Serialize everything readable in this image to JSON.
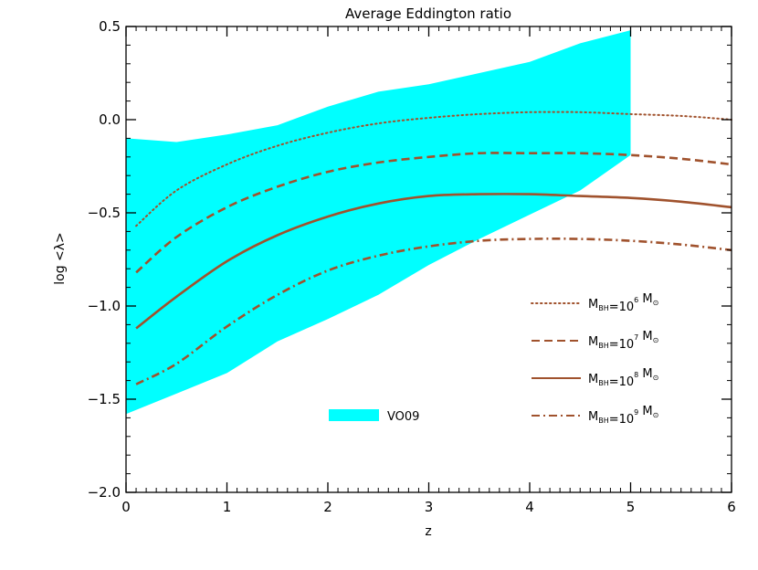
{
  "chart_data": {
    "type": "line",
    "title": "Average Eddington ratio",
    "xlabel": "z",
    "ylabel": "log <λ>",
    "xlim": [
      0,
      6
    ],
    "ylim": [
      -2.0,
      0.5
    ],
    "xticks": [
      0,
      1,
      2,
      3,
      4,
      5,
      6
    ],
    "xtick_labels": [
      "0",
      "1",
      "2",
      "3",
      "4",
      "5",
      "6"
    ],
    "yticks": [
      -2.0,
      -1.5,
      -1.0,
      -0.5,
      0.0,
      0.5
    ],
    "ytick_labels": [
      "−2.0",
      "−1.5",
      "−1.0",
      "−0.5",
      "0.0",
      "0.5"
    ],
    "band": {
      "name": "VO09",
      "color": "#00ffff",
      "upper": [
        [
          0,
          -0.1
        ],
        [
          0.5,
          -0.12
        ],
        [
          1,
          -0.08
        ],
        [
          1.5,
          -0.03
        ],
        [
          2,
          0.07
        ],
        [
          2.5,
          0.15
        ],
        [
          3,
          0.19
        ],
        [
          3.5,
          0.25
        ],
        [
          4,
          0.31
        ],
        [
          4.5,
          0.41
        ],
        [
          5,
          0.48
        ]
      ],
      "lower": [
        [
          0,
          -1.58
        ],
        [
          0.5,
          -1.47
        ],
        [
          1,
          -1.36
        ],
        [
          1.5,
          -1.19
        ],
        [
          2,
          -1.07
        ],
        [
          2.5,
          -0.94
        ],
        [
          3,
          -0.78
        ],
        [
          3.5,
          -0.64
        ],
        [
          4,
          -0.51
        ],
        [
          4.5,
          -0.38
        ],
        [
          5,
          -0.19
        ]
      ]
    },
    "series": [
      {
        "label_base": "M",
        "label_sub": "BH",
        "label_mid": "=10",
        "label_sup": "6",
        "label_unit": "M",
        "label_unit_sub": "⊙",
        "style": "dotted",
        "color": "#a0522d",
        "x": [
          0.1,
          0.5,
          1,
          1.5,
          2,
          2.5,
          3,
          3.5,
          4,
          4.5,
          5,
          5.5,
          6
        ],
        "y": [
          -0.57,
          -0.38,
          -0.24,
          -0.14,
          -0.07,
          -0.02,
          0.01,
          0.03,
          0.04,
          0.04,
          0.03,
          0.02,
          0.0
        ]
      },
      {
        "label_base": "M",
        "label_sub": "BH",
        "label_mid": "=10",
        "label_sup": "7",
        "label_unit": "M",
        "label_unit_sub": "⊙",
        "style": "dashed",
        "color": "#a0522d",
        "x": [
          0.1,
          0.5,
          1,
          1.5,
          2,
          2.5,
          3,
          3.5,
          4,
          4.5,
          5,
          5.5,
          6
        ],
        "y": [
          -0.82,
          -0.63,
          -0.47,
          -0.36,
          -0.28,
          -0.23,
          -0.2,
          -0.18,
          -0.18,
          -0.18,
          -0.19,
          -0.21,
          -0.24
        ]
      },
      {
        "label_base": "M",
        "label_sub": "BH",
        "label_mid": "=10",
        "label_sup": "8",
        "label_unit": "M",
        "label_unit_sub": "⊙",
        "style": "solid",
        "color": "#a0522d",
        "x": [
          0.1,
          0.5,
          1,
          1.5,
          2,
          2.5,
          3,
          3.5,
          4,
          4.5,
          5,
          5.5,
          6
        ],
        "y": [
          -1.12,
          -0.95,
          -0.76,
          -0.62,
          -0.52,
          -0.45,
          -0.41,
          -0.4,
          -0.4,
          -0.41,
          -0.42,
          -0.44,
          -0.47
        ]
      },
      {
        "label_base": "M",
        "label_sub": "BH",
        "label_mid": "=10",
        "label_sup": "9",
        "label_unit": "M",
        "label_unit_sub": "⊙",
        "style": "dashdot",
        "color": "#a0522d",
        "x": [
          0.1,
          0.5,
          1,
          1.5,
          2,
          2.5,
          3,
          3.5,
          4,
          4.5,
          5,
          5.5,
          6
        ],
        "y": [
          -1.42,
          -1.31,
          -1.11,
          -0.94,
          -0.81,
          -0.73,
          -0.68,
          -0.65,
          -0.64,
          -0.64,
          -0.65,
          -0.67,
          -0.7
        ]
      }
    ],
    "legend_placement": "bottom-right",
    "grid": false
  }
}
